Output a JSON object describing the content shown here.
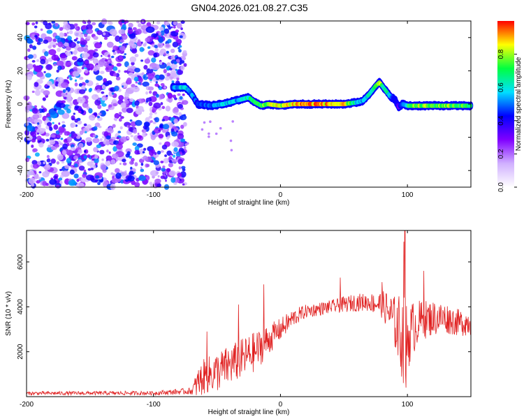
{
  "figure_title": "GN04.2026.021.08.27.C35",
  "chart_data": [
    {
      "type": "heatmap",
      "title": "GN04.2026.021.08.27.C35",
      "xlabel": "Height of straight line (km)",
      "ylabel": "Frequency (Hz)",
      "xlim": [
        -200,
        150
      ],
      "ylim": [
        -50,
        50
      ],
      "x_ticks": [
        -200,
        -100,
        0,
        100
      ],
      "y_ticks": [
        -40,
        -20,
        0,
        20,
        40
      ],
      "colorbar": {
        "label": "Normalized spectral amplitude",
        "range": [
          0,
          1
        ],
        "ticks": [
          0.0,
          0.2,
          0.4,
          0.6,
          0.8
        ],
        "colors": [
          "#ffffff",
          "#d0b0ff",
          "#8000ff",
          "#0000ff",
          "#00e0ff",
          "#00ff40",
          "#ffff00",
          "#ff0000"
        ]
      },
      "noise_region_x": [
        -200,
        -75
      ],
      "ridge": {
        "x": [
          -85,
          -75,
          -72,
          -65,
          -55,
          -45,
          -35,
          -25,
          -20,
          -15,
          -10,
          0,
          10,
          20,
          30,
          40,
          50,
          60,
          65,
          70,
          75,
          78,
          82,
          86,
          90,
          93,
          96,
          100,
          110,
          120,
          130,
          140,
          150
        ],
        "freq": [
          10,
          10,
          8,
          0,
          -1,
          0,
          2,
          4,
          1,
          -1,
          0,
          -1,
          0,
          0,
          0,
          0,
          0,
          1,
          2,
          6,
          11,
          13,
          9,
          5,
          3,
          -2,
          0,
          -1,
          -1,
          -1,
          -1,
          -1,
          -1
        ],
        "amplitude": [
          0.5,
          0.6,
          0.55,
          0.45,
          0.5,
          0.6,
          0.55,
          0.65,
          0.7,
          0.75,
          0.8,
          0.85,
          0.9,
          0.95,
          0.95,
          0.9,
          0.85,
          0.6,
          0.55,
          0.6,
          0.7,
          0.8,
          0.65,
          0.6,
          0.4,
          0.35,
          0.45,
          0.7,
          0.8,
          0.75,
          0.8,
          0.75,
          0.7
        ]
      }
    },
    {
      "type": "line",
      "xlabel": "Height of straight line (km)",
      "ylabel": "SNR (10 * v/v)",
      "xlim": [
        -200,
        150
      ],
      "ylim": [
        0,
        7400
      ],
      "x_ticks": [
        -200,
        -100,
        0,
        100
      ],
      "y_ticks": [
        2000,
        4000,
        6000
      ],
      "series": [
        {
          "name": "SNR",
          "color": "#e02020",
          "envelope_x": [
            -200,
            -100,
            -70,
            -65,
            -60,
            -50,
            -40,
            -30,
            -20,
            -10,
            0,
            10,
            20,
            30,
            40,
            50,
            60,
            70,
            80,
            85,
            90,
            95,
            98,
            100,
            105,
            110,
            120,
            130,
            140,
            150
          ],
          "envelope_mean": [
            150,
            160,
            250,
            600,
            900,
            1100,
            1400,
            1700,
            2000,
            2500,
            3000,
            3500,
            3800,
            3900,
            4000,
            4100,
            4200,
            4200,
            4100,
            3800,
            3300,
            2800,
            2000,
            2600,
            3100,
            3400,
            3500,
            3500,
            3300,
            3300
          ],
          "envelope_spread": [
            80,
            90,
            150,
            700,
            800,
            900,
            900,
            900,
            900,
            700,
            500,
            400,
            300,
            300,
            300,
            350,
            400,
            400,
            600,
            900,
            1200,
            1800,
            2500,
            1500,
            1200,
            900,
            800,
            700,
            600,
            600
          ],
          "spikes": [
            {
              "x": -58,
              "y": 2900
            },
            {
              "x": -33,
              "y": 4100
            },
            {
              "x": -13,
              "y": 5000
            },
            {
              "x": 47,
              "y": 5300
            },
            {
              "x": 80,
              "y": 5100
            },
            {
              "x": 97,
              "y": 6900
            },
            {
              "x": 98,
              "y": 7400
            },
            {
              "x": 113,
              "y": 5600
            },
            {
              "x": 99,
              "y": 400
            }
          ]
        }
      ]
    }
  ]
}
